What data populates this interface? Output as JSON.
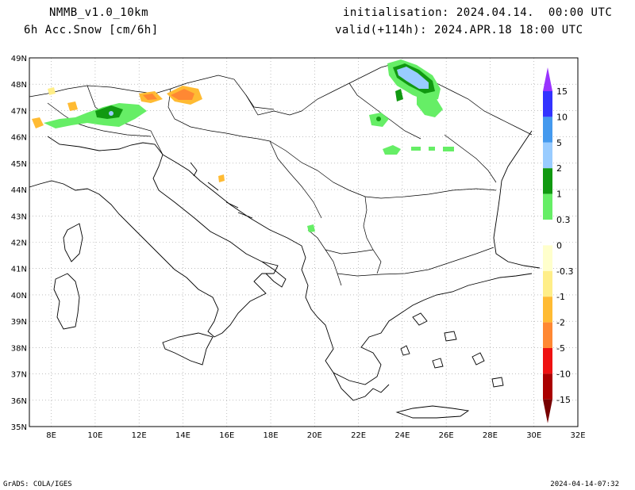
{
  "header": {
    "model": "NMMB_v1.0_10km",
    "field": "6h Acc.Snow [cm/6h]",
    "init": "initialisation: 2024.04.14.  00:00 UTC",
    "valid": "valid(+114h): 2024.APR.18 18:00 UTC"
  },
  "map": {
    "lon_range": [
      7,
      32
    ],
    "lat_range": [
      35,
      49
    ],
    "lon_labels": [
      "8E",
      "10E",
      "12E",
      "14E",
      "16E",
      "18E",
      "20E",
      "22E",
      "24E",
      "26E",
      "28E",
      "30E",
      "32E"
    ],
    "lat_labels": [
      "49N",
      "48N",
      "47N",
      "46N",
      "45N",
      "44N",
      "43N",
      "42N",
      "41N",
      "40N",
      "39N",
      "38N",
      "37N",
      "36N",
      "35N"
    ]
  },
  "colorbar": {
    "labels": [
      "15",
      "10",
      "5",
      "2",
      "1",
      "0.3",
      "0",
      "-0.3",
      "-1",
      "-2",
      "-5",
      "-10",
      "-15"
    ],
    "colors": [
      "#9933ff",
      "#3333ff",
      "#4499ee",
      "#99ccff",
      "#119911",
      "#66ee66",
      "#ffffff",
      "#ffffcc",
      "#ffee88",
      "#ffbb33",
      "#ff8833",
      "#ee1111",
      "#aa0000",
      "#770000"
    ]
  },
  "footer": {
    "left": "GrADS: COLA/IGES",
    "right": "2024-04-14-07:32"
  }
}
